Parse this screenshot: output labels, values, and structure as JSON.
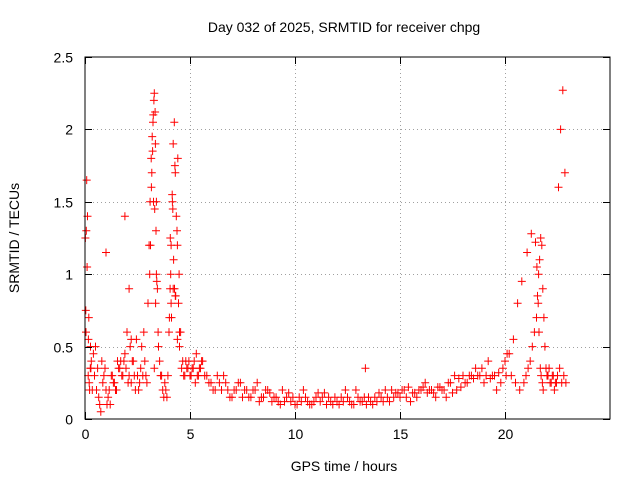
{
  "chart_data": {
    "type": "scatter",
    "title": "Day 032 of 2025, SRMTID for receiver chpg",
    "xlabel": "GPS time / hours",
    "ylabel": "SRMTID / TECUs",
    "xlim": [
      0,
      25
    ],
    "ylim": [
      0,
      2.5
    ],
    "xticks": [
      0,
      5,
      10,
      15,
      20
    ],
    "yticks": [
      0,
      0.5,
      1,
      1.5,
      2,
      2.5
    ],
    "xtick_labels": [
      "0",
      "5",
      "10",
      "15",
      "20"
    ],
    "ytick_labels": [
      "0",
      "0.5",
      "1",
      "1.5",
      "2",
      "2.5"
    ],
    "grid": true,
    "marker": "plus",
    "color": "#ff0000",
    "series": [
      {
        "name": "SRMTID",
        "x": [
          0.05,
          0.1,
          0.15,
          0.2,
          0.25,
          0.3,
          0.35,
          0.4,
          0.5,
          0.6,
          0.7,
          0.8,
          0.9,
          1.0,
          1.1,
          1.2,
          1.3,
          1.4,
          1.5,
          1.6,
          1.7,
          1.8,
          1.9,
          2.0,
          2.1,
          2.2,
          2.3,
          2.4,
          2.5,
          2.6,
          2.7,
          2.8,
          2.9,
          3.0,
          3.05,
          3.1,
          3.15,
          3.2,
          3.25,
          3.3,
          3.35,
          3.4,
          3.45,
          3.5,
          3.6,
          3.7,
          3.8,
          3.9,
          4.0,
          4.05,
          4.1,
          4.15,
          4.2,
          4.25,
          4.3,
          4.35,
          4.4,
          4.45,
          4.5,
          4.6,
          4.7,
          4.8,
          4.9,
          5.0,
          5.1,
          5.2,
          5.3,
          5.4,
          5.5,
          5.6,
          5.8,
          6.0,
          6.2,
          6.4,
          6.6,
          6.8,
          7.0,
          7.2,
          7.4,
          7.6,
          7.8,
          8.0,
          8.2,
          8.4,
          8.6,
          8.8,
          9.0,
          9.2,
          9.4,
          9.6,
          9.8,
          10.0,
          10.2,
          10.4,
          10.6,
          10.8,
          11.0,
          11.2,
          11.4,
          11.6,
          11.8,
          12.0,
          12.2,
          12.4,
          12.6,
          12.8,
          13.0,
          13.2,
          13.35,
          13.5,
          13.7,
          13.9,
          14.1,
          14.3,
          14.5,
          14.7,
          14.9,
          15.1,
          15.3,
          15.5,
          15.7,
          15.9,
          16.1,
          16.3,
          16.5,
          16.7,
          16.9,
          17.1,
          17.3,
          17.5,
          17.7,
          17.9,
          18.1,
          18.3,
          18.5,
          18.7,
          18.9,
          19.1,
          19.3,
          19.5,
          19.7,
          19.9,
          20.0,
          20.1,
          20.3,
          20.5,
          20.7,
          20.9,
          21.0,
          21.1,
          21.2,
          21.3,
          21.4,
          21.5,
          21.55,
          21.6,
          21.65,
          21.7,
          21.75,
          21.8,
          21.85,
          21.9,
          22.0,
          22.1,
          22.2,
          22.3,
          22.4,
          22.5,
          22.6,
          22.7,
          22.8,
          22.9,
          0.08,
          0.12,
          0.22,
          0.28,
          0.45,
          0.55,
          0.65,
          0.75,
          0.85,
          0.95,
          1.05,
          1.15,
          1.25,
          1.35,
          1.45,
          1.55,
          1.65,
          1.75,
          1.85,
          1.95,
          2.05,
          2.15,
          2.25,
          2.35,
          2.45,
          2.55,
          2.65,
          2.75,
          2.85,
          2.95,
          3.08,
          3.18,
          3.28,
          3.38,
          3.48,
          3.55,
          3.65,
          3.75,
          3.85,
          3.95,
          4.02,
          4.08,
          4.18,
          4.28,
          4.38,
          4.48,
          4.55,
          4.65,
          4.75,
          4.85,
          4.95,
          5.05,
          5.15,
          5.25,
          5.35,
          5.45,
          5.55,
          5.7,
          5.9,
          6.1,
          6.3,
          6.5,
          6.7,
          6.9,
          7.1,
          7.3,
          7.5,
          7.7,
          7.9,
          8.1,
          8.3,
          8.5,
          8.7,
          8.9,
          9.1,
          9.3,
          9.5,
          9.7,
          9.9,
          10.1,
          10.3,
          10.5,
          10.7,
          10.9,
          11.1,
          11.3,
          11.5,
          11.7,
          11.9,
          12.1,
          12.3,
          12.5,
          12.7,
          12.9,
          13.1,
          13.3,
          13.4,
          13.6,
          13.8,
          14.0,
          14.2,
          14.4,
          14.6,
          14.8,
          15.0,
          15.2,
          15.4,
          15.6,
          15.8,
          16.0,
          16.2,
          16.4,
          16.6,
          16.8,
          17.0,
          17.2,
          17.4,
          17.6,
          17.8,
          18.0,
          18.2,
          18.4,
          18.6,
          18.8,
          19.0,
          19.2,
          19.4,
          19.6,
          19.8,
          20.05,
          20.2,
          20.4,
          20.6,
          20.8,
          21.05,
          21.25,
          21.45,
          21.52,
          21.58,
          21.62,
          21.68,
          21.72,
          21.78,
          21.82,
          21.95,
          22.05,
          22.15,
          22.25,
          22.35,
          22.45,
          22.55,
          22.65,
          22.75,
          22.85,
          3.12,
          3.22,
          3.32,
          3.42,
          4.12,
          4.22,
          4.32,
          4.42,
          3.26,
          3.36,
          4.06,
          4.16,
          4.26,
          0.04,
          0.18,
          2.1,
          2.2,
          1.9,
          0.02,
          1.0,
          3.3,
          3.4,
          4.1,
          4.2,
          4.3,
          4.4,
          4.5,
          0.06,
          0.16,
          0.26,
          3.16,
          3.24,
          3.34
        ],
        "y": [
          0.6,
          1.05,
          0.3,
          0.25,
          0.35,
          0.4,
          0.2,
          0.45,
          0.5,
          0.35,
          0.1,
          0.4,
          0.3,
          0.2,
          0.15,
          0.1,
          0.3,
          0.25,
          0.2,
          0.35,
          0.4,
          0.3,
          0.45,
          0.6,
          0.3,
          0.25,
          0.4,
          0.2,
          0.3,
          0.25,
          0.5,
          0.6,
          0.3,
          0.8,
          1.2,
          1.5,
          1.8,
          1.95,
          2.1,
          2.25,
          1.9,
          1.5,
          0.9,
          0.5,
          0.3,
          0.2,
          0.25,
          0.15,
          0.6,
          0.9,
          1.2,
          1.55,
          1.9,
          2.05,
          1.7,
          1.4,
          1.2,
          0.8,
          0.5,
          0.35,
          0.3,
          0.4,
          0.35,
          0.3,
          0.35,
          0.4,
          0.45,
          0.3,
          0.35,
          0.4,
          0.3,
          0.25,
          0.2,
          0.25,
          0.3,
          0.2,
          0.15,
          0.2,
          0.25,
          0.2,
          0.15,
          0.2,
          0.25,
          0.15,
          0.2,
          0.18,
          0.15,
          0.12,
          0.2,
          0.15,
          0.12,
          0.1,
          0.15,
          0.2,
          0.12,
          0.1,
          0.15,
          0.12,
          0.18,
          0.15,
          0.1,
          0.12,
          0.15,
          0.2,
          0.12,
          0.1,
          0.15,
          0.12,
          0.35,
          0.15,
          0.1,
          0.12,
          0.15,
          0.2,
          0.12,
          0.15,
          0.18,
          0.2,
          0.15,
          0.12,
          0.18,
          0.2,
          0.22,
          0.18,
          0.2,
          0.15,
          0.22,
          0.2,
          0.25,
          0.18,
          0.2,
          0.22,
          0.25,
          0.3,
          0.28,
          0.3,
          0.35,
          0.3,
          0.28,
          0.3,
          0.32,
          0.35,
          0.4,
          0.45,
          0.3,
          0.25,
          0.2,
          0.25,
          0.3,
          0.35,
          0.4,
          0.5,
          0.6,
          0.7,
          0.85,
          1.0,
          1.1,
          1.25,
          1.2,
          0.9,
          0.7,
          0.5,
          0.3,
          0.35,
          0.25,
          0.3,
          0.25,
          0.3,
          0.35,
          0.25,
          0.3,
          0.25,
          1.65,
          1.4,
          0.2,
          0.35,
          0.3,
          0.2,
          0.15,
          0.05,
          0.25,
          0.35,
          0.1,
          0.2,
          0.3,
          0.25,
          0.2,
          0.4,
          0.35,
          0.3,
          0.4,
          0.35,
          0.25,
          0.5,
          0.4,
          0.3,
          0.55,
          0.2,
          0.35,
          0.3,
          0.4,
          0.25,
          1.0,
          1.7,
          2.2,
          1.3,
          0.6,
          0.4,
          0.3,
          0.15,
          0.2,
          0.3,
          0.7,
          1.0,
          1.45,
          1.75,
          1.3,
          1.0,
          0.6,
          0.4,
          0.3,
          0.35,
          0.4,
          0.3,
          0.35,
          0.25,
          0.3,
          0.35,
          0.4,
          0.3,
          0.25,
          0.2,
          0.3,
          0.2,
          0.25,
          0.15,
          0.2,
          0.25,
          0.15,
          0.2,
          0.15,
          0.2,
          0.12,
          0.15,
          0.2,
          0.12,
          0.15,
          0.1,
          0.12,
          0.18,
          0.15,
          0.1,
          0.12,
          0.15,
          0.1,
          0.12,
          0.18,
          0.15,
          0.1,
          0.12,
          0.15,
          0.1,
          0.12,
          0.15,
          0.1,
          0.2,
          0.12,
          0.15,
          0.1,
          0.12,
          0.15,
          0.18,
          0.12,
          0.15,
          0.2,
          0.18,
          0.15,
          0.2,
          0.22,
          0.18,
          0.15,
          0.2,
          0.25,
          0.2,
          0.18,
          0.22,
          0.2,
          0.15,
          0.25,
          0.3,
          0.28,
          0.3,
          0.25,
          0.3,
          0.35,
          0.3,
          0.25,
          0.4,
          0.3,
          0.2,
          0.25,
          0.3,
          0.45,
          0.55,
          0.8,
          0.95,
          1.15,
          1.28,
          1.22,
          1.05,
          0.8,
          0.6,
          0.35,
          0.3,
          0.25,
          0.2,
          0.35,
          0.3,
          0.25,
          0.3,
          0.2,
          0.25,
          1.6,
          2.0,
          2.27,
          1.7,
          1.2,
          1.85,
          1.45,
          0.95,
          0.7,
          1.1,
          0.85,
          1.8,
          1.5,
          0.8,
          1.25,
          1.5,
          0.9,
          0.75,
          0.7,
          0.9,
          0.55,
          1.4,
          1.25,
          1.15,
          0.35,
          1.0,
          0.8,
          0.9,
          0.85,
          0.55,
          0.6,
          1.3,
          0.55,
          0.5,
          1.6,
          2.05,
          2.12
        ]
      }
    ]
  }
}
